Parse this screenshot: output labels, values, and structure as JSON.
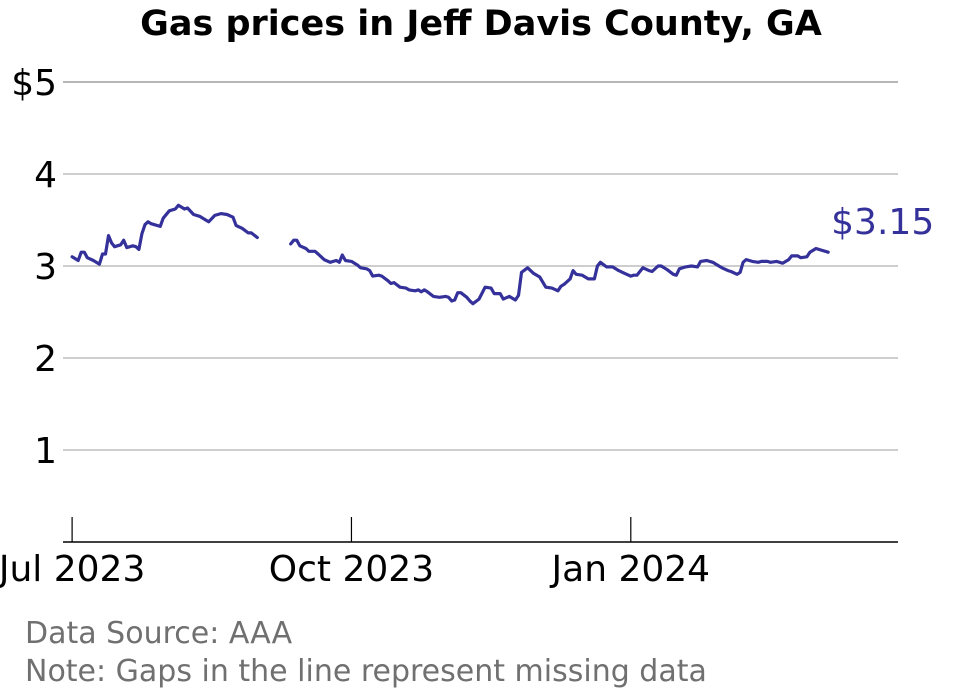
{
  "title": "Gas prices in Jeff Davis County, GA",
  "footer": {
    "source": "Data Source: AAA",
    "note": "Note: Gaps in the line represent missing data"
  },
  "colors": {
    "line": "#35319a",
    "grid": "#b0b0b0",
    "axis": "#000000",
    "footer": "#707070"
  },
  "chart_data": {
    "type": "line",
    "title": "Gas prices in Jeff Davis County, GA",
    "xlabel": "",
    "ylabel": "",
    "ylim": [
      0,
      5
    ],
    "xlim": [
      "2023-06-28",
      "2024-03-29"
    ],
    "yticks": [
      {
        "value": 1,
        "label": "1"
      },
      {
        "value": 2,
        "label": "2"
      },
      {
        "value": 3,
        "label": "3"
      },
      {
        "value": 4,
        "label": "4"
      },
      {
        "value": 5,
        "label": "$5"
      }
    ],
    "xticks": [
      {
        "value": "2023-07-01",
        "label": "Jul 2023"
      },
      {
        "value": "2023-10-01",
        "label": "Oct 2023"
      },
      {
        "value": "2024-01-01",
        "label": "Jan 2024"
      }
    ],
    "grid": true,
    "end_label": "$3.15",
    "series": [
      {
        "segments": [
          [
            [
              "2023-07-01",
              3.1
            ],
            [
              "2023-07-03",
              3.06
            ],
            [
              "2023-07-04",
              3.15
            ],
            [
              "2023-07-05",
              3.15
            ],
            [
              "2023-07-06",
              3.09
            ],
            [
              "2023-07-08",
              3.06
            ],
            [
              "2023-07-10",
              3.02
            ],
            [
              "2023-07-11",
              3.13
            ],
            [
              "2023-07-12",
              3.13
            ],
            [
              "2023-07-13",
              3.33
            ],
            [
              "2023-07-14",
              3.25
            ],
            [
              "2023-07-15",
              3.21
            ],
            [
              "2023-07-17",
              3.23
            ],
            [
              "2023-07-18",
              3.28
            ],
            [
              "2023-07-19",
              3.2
            ],
            [
              "2023-07-21",
              3.22
            ],
            [
              "2023-07-22",
              3.21
            ],
            [
              "2023-07-23",
              3.18
            ],
            [
              "2023-07-24",
              3.35
            ],
            [
              "2023-07-25",
              3.45
            ],
            [
              "2023-07-26",
              3.48
            ],
            [
              "2023-07-27",
              3.46
            ],
            [
              "2023-07-30",
              3.43
            ],
            [
              "2023-07-31",
              3.52
            ],
            [
              "2023-08-02",
              3.6
            ],
            [
              "2023-08-04",
              3.62
            ],
            [
              "2023-08-05",
              3.66
            ],
            [
              "2023-08-07",
              3.62
            ],
            [
              "2023-08-08",
              3.63
            ],
            [
              "2023-08-10",
              3.56
            ],
            [
              "2023-08-12",
              3.54
            ],
            [
              "2023-08-14",
              3.5
            ],
            [
              "2023-08-15",
              3.48
            ],
            [
              "2023-08-17",
              3.55
            ],
            [
              "2023-08-19",
              3.57
            ],
            [
              "2023-08-21",
              3.56
            ],
            [
              "2023-08-23",
              3.53
            ],
            [
              "2023-08-24",
              3.44
            ],
            [
              "2023-08-26",
              3.41
            ],
            [
              "2023-08-28",
              3.36
            ],
            [
              "2023-08-29",
              3.36
            ],
            [
              "2023-08-31",
              3.31
            ]
          ],
          [
            [
              "2023-09-11",
              3.24
            ],
            [
              "2023-09-12",
              3.28
            ],
            [
              "2023-09-13",
              3.28
            ],
            [
              "2023-09-14",
              3.22
            ],
            [
              "2023-09-16",
              3.19
            ],
            [
              "2023-09-17",
              3.16
            ],
            [
              "2023-09-19",
              3.16
            ],
            [
              "2023-09-20",
              3.13
            ],
            [
              "2023-09-22",
              3.07
            ],
            [
              "2023-09-24",
              3.04
            ],
            [
              "2023-09-25",
              3.05
            ],
            [
              "2023-09-26",
              3.06
            ],
            [
              "2023-09-27",
              3.04
            ],
            [
              "2023-09-28",
              3.12
            ],
            [
              "2023-09-29",
              3.06
            ],
            [
              "2023-10-01",
              3.05
            ],
            [
              "2023-10-03",
              3.01
            ],
            [
              "2023-10-04",
              2.98
            ],
            [
              "2023-10-06",
              2.97
            ],
            [
              "2023-10-07",
              2.95
            ],
            [
              "2023-10-08",
              2.89
            ],
            [
              "2023-10-10",
              2.9
            ],
            [
              "2023-10-11",
              2.89
            ],
            [
              "2023-10-13",
              2.84
            ],
            [
              "2023-10-14",
              2.81
            ],
            [
              "2023-10-15",
              2.82
            ],
            [
              "2023-10-17",
              2.77
            ],
            [
              "2023-10-19",
              2.76
            ],
            [
              "2023-10-20",
              2.74
            ],
            [
              "2023-10-22",
              2.73
            ],
            [
              "2023-10-23",
              2.74
            ],
            [
              "2023-10-24",
              2.72
            ],
            [
              "2023-10-25",
              2.74
            ],
            [
              "2023-10-26",
              2.72
            ],
            [
              "2023-10-28",
              2.67
            ],
            [
              "2023-10-30",
              2.66
            ],
            [
              "2023-11-01",
              2.67
            ],
            [
              "2023-11-02",
              2.66
            ],
            [
              "2023-11-03",
              2.62
            ],
            [
              "2023-11-04",
              2.63
            ],
            [
              "2023-11-05",
              2.71
            ],
            [
              "2023-11-06",
              2.71
            ],
            [
              "2023-11-08",
              2.66
            ],
            [
              "2023-11-09",
              2.62
            ],
            [
              "2023-11-10",
              2.59
            ],
            [
              "2023-11-12",
              2.64
            ],
            [
              "2023-11-14",
              2.77
            ],
            [
              "2023-11-16",
              2.76
            ],
            [
              "2023-11-17",
              2.7
            ],
            [
              "2023-11-19",
              2.7
            ],
            [
              "2023-11-20",
              2.64
            ],
            [
              "2023-11-22",
              2.67
            ],
            [
              "2023-11-24",
              2.63
            ],
            [
              "2023-11-25",
              2.68
            ],
            [
              "2023-11-26",
              2.93
            ],
            [
              "2023-11-28",
              2.98
            ],
            [
              "2023-11-30",
              2.92
            ],
            [
              "2023-12-02",
              2.88
            ],
            [
              "2023-12-04",
              2.77
            ],
            [
              "2023-12-06",
              2.76
            ],
            [
              "2023-12-08",
              2.73
            ],
            [
              "2023-12-09",
              2.78
            ],
            [
              "2023-12-10",
              2.8
            ],
            [
              "2023-12-12",
              2.86
            ],
            [
              "2023-12-13",
              2.95
            ],
            [
              "2023-12-14",
              2.91
            ],
            [
              "2023-12-16",
              2.9
            ],
            [
              "2023-12-18",
              2.86
            ],
            [
              "2023-12-20",
              2.86
            ],
            [
              "2023-12-21",
              3.0
            ],
            [
              "2023-12-22",
              3.04
            ],
            [
              "2023-12-24",
              2.99
            ],
            [
              "2023-12-26",
              2.99
            ],
            [
              "2023-12-28",
              2.95
            ],
            [
              "2023-12-30",
              2.92
            ],
            [
              "2024-01-01",
              2.89
            ],
            [
              "2024-01-02",
              2.9
            ],
            [
              "2024-01-03",
              2.9
            ],
            [
              "2024-01-05",
              2.98
            ],
            [
              "2024-01-07",
              2.95
            ],
            [
              "2024-01-08",
              2.94
            ],
            [
              "2024-01-10",
              3.0
            ],
            [
              "2024-01-11",
              3.0
            ],
            [
              "2024-01-13",
              2.96
            ],
            [
              "2024-01-15",
              2.91
            ],
            [
              "2024-01-16",
              2.9
            ],
            [
              "2024-01-17",
              2.97
            ],
            [
              "2024-01-19",
              2.99
            ],
            [
              "2024-01-21",
              3.0
            ],
            [
              "2024-01-23",
              2.99
            ],
            [
              "2024-01-24",
              3.05
            ],
            [
              "2024-01-26",
              3.06
            ],
            [
              "2024-01-28",
              3.04
            ],
            [
              "2024-01-30",
              3.0
            ],
            [
              "2024-01-31",
              2.98
            ],
            [
              "2024-02-02",
              2.95
            ],
            [
              "2024-02-03",
              2.94
            ],
            [
              "2024-02-05",
              2.91
            ],
            [
              "2024-02-06",
              2.93
            ],
            [
              "2024-02-07",
              3.04
            ],
            [
              "2024-02-08",
              3.07
            ],
            [
              "2024-02-10",
              3.05
            ],
            [
              "2024-02-12",
              3.04
            ],
            [
              "2024-02-13",
              3.05
            ],
            [
              "2024-02-15",
              3.05
            ],
            [
              "2024-02-16",
              3.04
            ],
            [
              "2024-02-18",
              3.05
            ],
            [
              "2024-02-20",
              3.03
            ],
            [
              "2024-02-22",
              3.07
            ],
            [
              "2024-02-23",
              3.11
            ],
            [
              "2024-02-25",
              3.11
            ],
            [
              "2024-02-26",
              3.09
            ],
            [
              "2024-02-28",
              3.1
            ],
            [
              "2024-02-29",
              3.15
            ],
            [
              "2024-03-02",
              3.19
            ],
            [
              "2024-03-04",
              3.17
            ],
            [
              "2024-03-06",
              3.15
            ]
          ]
        ]
      }
    ]
  }
}
